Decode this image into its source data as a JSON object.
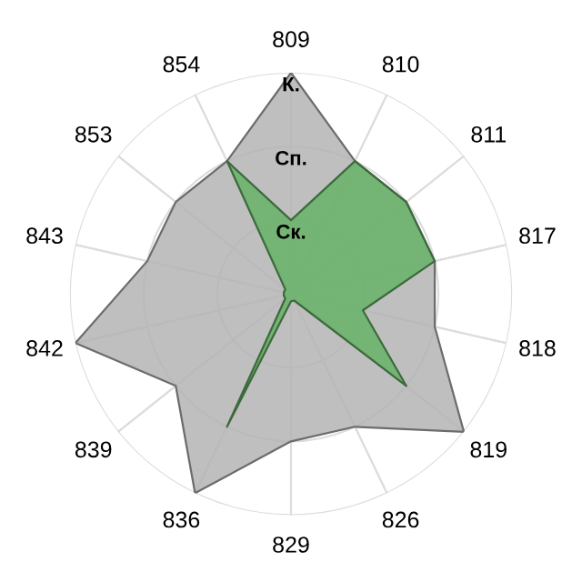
{
  "chart_data": {
    "type": "radar",
    "categories": [
      "809",
      "810",
      "811",
      "817",
      "818",
      "819",
      "826",
      "829",
      "836",
      "839",
      "842",
      "843",
      "853",
      "854"
    ],
    "series": [
      {
        "color": "#b4b4b4",
        "values": [
          3,
          2,
          2,
          2,
          2,
          3,
          2,
          2,
          3,
          2,
          3,
          2,
          2,
          2
        ]
      },
      {
        "color": "#66b266",
        "values": [
          1,
          2,
          2,
          2,
          1,
          2,
          0.1,
          0.1,
          2,
          0.1,
          0.1,
          0.1,
          0.1,
          2
        ]
      }
    ],
    "ylim": [
      0,
      3
    ],
    "yticks": [
      {
        "value": 1,
        "label": "Ск."
      },
      {
        "value": 2,
        "label": "Сп."
      },
      {
        "value": 3,
        "label": "К."
      }
    ],
    "grid": true
  }
}
